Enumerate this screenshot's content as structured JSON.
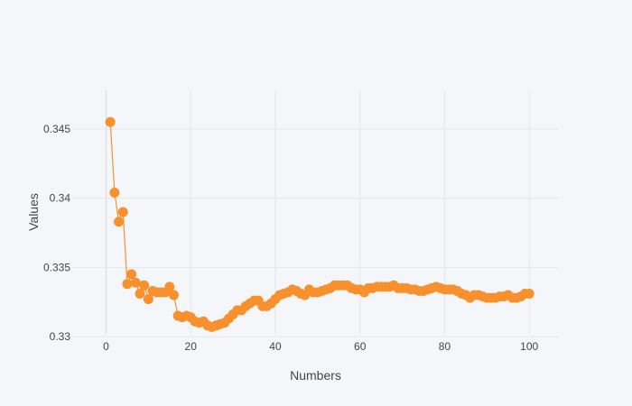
{
  "chart_data": {
    "type": "line",
    "title": "",
    "xlabel": "Numbers",
    "ylabel": "Values",
    "xlim": [
      -8,
      107
    ],
    "ylim": [
      0.3302,
      0.3478
    ],
    "x_ticks": [
      0,
      20,
      40,
      60,
      80,
      100
    ],
    "x_tick_labels": [
      "0",
      "20",
      "40",
      "60",
      "80",
      "100"
    ],
    "y_ticks": [
      0.33,
      0.335,
      0.34,
      0.345
    ],
    "y_tick_labels": [
      "0.33",
      "0.335",
      "0.34",
      "0.345"
    ],
    "grid": true,
    "legend": "none",
    "colors": {
      "series": "#f7902d",
      "background": "#f5f6f9",
      "grid": "#e4e6ec"
    },
    "series": [
      {
        "mode": "lines+markers",
        "x": [
          1,
          2,
          3,
          4,
          5,
          6,
          7,
          8,
          9,
          10,
          11,
          12,
          13,
          14,
          15,
          16,
          17,
          18,
          19,
          20,
          21,
          22,
          23,
          24,
          25,
          26,
          27,
          28,
          29,
          30,
          31,
          32,
          33,
          34,
          35,
          36,
          37,
          38,
          39,
          40,
          41,
          42,
          43,
          44,
          45,
          46,
          47,
          48,
          49,
          50,
          51,
          52,
          53,
          54,
          55,
          56,
          57,
          58,
          59,
          60,
          61,
          62,
          63,
          64,
          65,
          66,
          67,
          68,
          69,
          70,
          71,
          72,
          73,
          74,
          75,
          76,
          77,
          78,
          79,
          80,
          81,
          82,
          83,
          84,
          85,
          86,
          87,
          88,
          89,
          90,
          91,
          92,
          93,
          94,
          95,
          96,
          97,
          98,
          99,
          100
        ],
        "y": [
          0.3455,
          0.3404,
          0.3383,
          0.339,
          0.3338,
          0.3345,
          0.3339,
          0.3331,
          0.3337,
          0.3327,
          0.3333,
          0.3332,
          0.3332,
          0.3332,
          0.3336,
          0.333,
          0.3315,
          0.3314,
          0.3315,
          0.3314,
          0.3311,
          0.331,
          0.3311,
          0.3308,
          0.3307,
          0.3308,
          0.3309,
          0.331,
          0.3313,
          0.3316,
          0.3319,
          0.3319,
          0.3322,
          0.3324,
          0.3326,
          0.3326,
          0.3322,
          0.3322,
          0.3324,
          0.3327,
          0.333,
          0.3331,
          0.3332,
          0.3334,
          0.3333,
          0.3331,
          0.333,
          0.3334,
          0.3332,
          0.3332,
          0.3333,
          0.3334,
          0.3335,
          0.3337,
          0.3337,
          0.3337,
          0.3337,
          0.3335,
          0.3334,
          0.3334,
          0.3332,
          0.3335,
          0.3335,
          0.3336,
          0.3336,
          0.3336,
          0.3336,
          0.3337,
          0.3335,
          0.3335,
          0.3335,
          0.3334,
          0.3334,
          0.3333,
          0.3333,
          0.3334,
          0.3335,
          0.3336,
          0.3335,
          0.3334,
          0.3334,
          0.3334,
          0.3333,
          0.3331,
          0.333,
          0.3328,
          0.333,
          0.333,
          0.3329,
          0.3328,
          0.3328,
          0.3328,
          0.3329,
          0.3329,
          0.333,
          0.3328,
          0.3328,
          0.3329,
          0.3331,
          0.3331
        ]
      }
    ]
  }
}
